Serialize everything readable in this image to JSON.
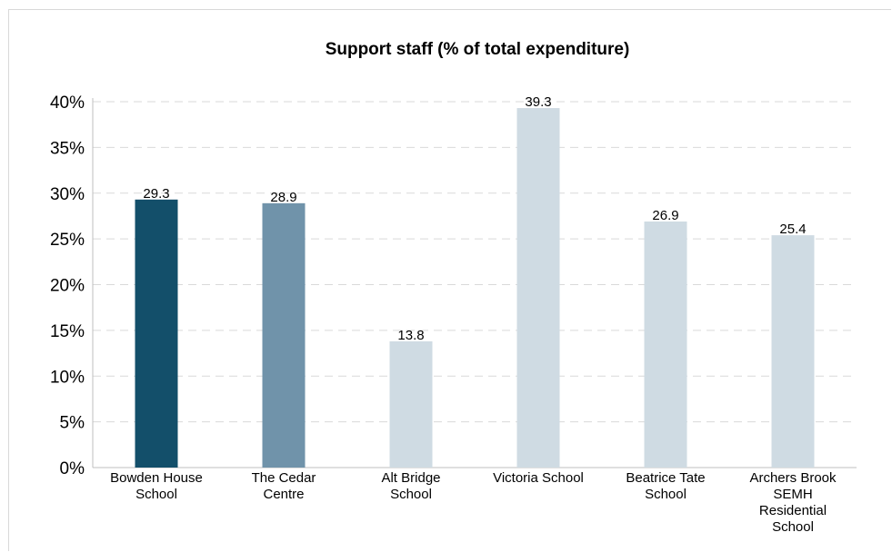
{
  "chart_data": {
    "type": "bar",
    "title": "Support staff (% of total expenditure)",
    "categories": [
      [
        "Bowden House",
        "School"
      ],
      [
        "The Cedar",
        "Centre"
      ],
      [
        "Alt Bridge",
        "School"
      ],
      [
        "Victoria School"
      ],
      [
        "Beatrice Tate",
        "School"
      ],
      [
        "Archers Brook",
        "SEMH",
        "Residential",
        "School"
      ]
    ],
    "values": [
      29.3,
      28.9,
      13.8,
      39.3,
      26.9,
      25.4
    ],
    "data_labels": [
      "29.3",
      "28.9",
      "13.8",
      "39.3",
      "26.9",
      "25.4"
    ],
    "bar_colors": [
      "#134f6a",
      "#7093aa",
      "#cfdbe3",
      "#cfdbe3",
      "#cfdbe3",
      "#cfdbe3"
    ],
    "ylim": [
      0,
      40
    ],
    "yticks": [
      0,
      5,
      10,
      15,
      20,
      25,
      30,
      35,
      40
    ],
    "ytick_labels": [
      "0%",
      "5%",
      "10%",
      "15%",
      "20%",
      "25%",
      "30%",
      "35%",
      "40%"
    ],
    "grid": true,
    "grid_color": "#d9d9d9",
    "axis_color": "#bfbfbf",
    "xlabel": "",
    "ylabel": ""
  }
}
